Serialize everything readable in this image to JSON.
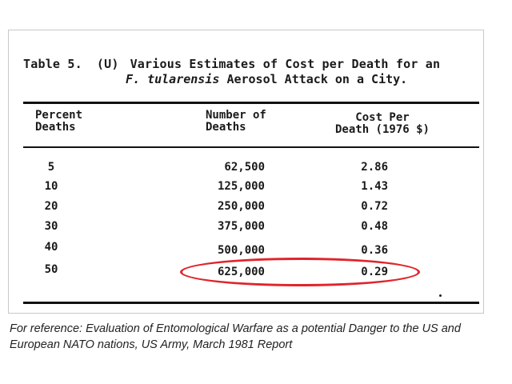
{
  "table": {
    "label": "Table 5.",
    "classification": "(U)",
    "title_line1": "Various Estimates of Cost per Death for an",
    "title_species": "F. tularensis",
    "title_line2_rest": "Aerosol Attack on a City.",
    "headers": {
      "percent": "Percent\nDeaths",
      "number": "Number of\nDeaths",
      "cost": "Cost Per\nDeath (1976 $)"
    },
    "rows": [
      {
        "percent": "5",
        "number": "62,500",
        "cost": "2.86"
      },
      {
        "percent": "10",
        "number": "125,000",
        "cost": "1.43"
      },
      {
        "percent": "20",
        "number": "250,000",
        "cost": "0.72"
      },
      {
        "percent": "30",
        "number": "375,000",
        "cost": "0.48"
      },
      {
        "percent": "40",
        "number": "500,000",
        "cost": "0.36"
      },
      {
        "percent": "50",
        "number": "625,000",
        "cost": "0.29"
      }
    ],
    "highlighted_row": "50"
  },
  "caption": {
    "line1": "For reference:  Evaluation of Entomological Warfare as a potential Danger to the US and",
    "line2": "European NATO nations, US Army, March 1981 Report"
  },
  "colors": {
    "highlight": "#e0242a",
    "ink": "#1a1a1a"
  }
}
